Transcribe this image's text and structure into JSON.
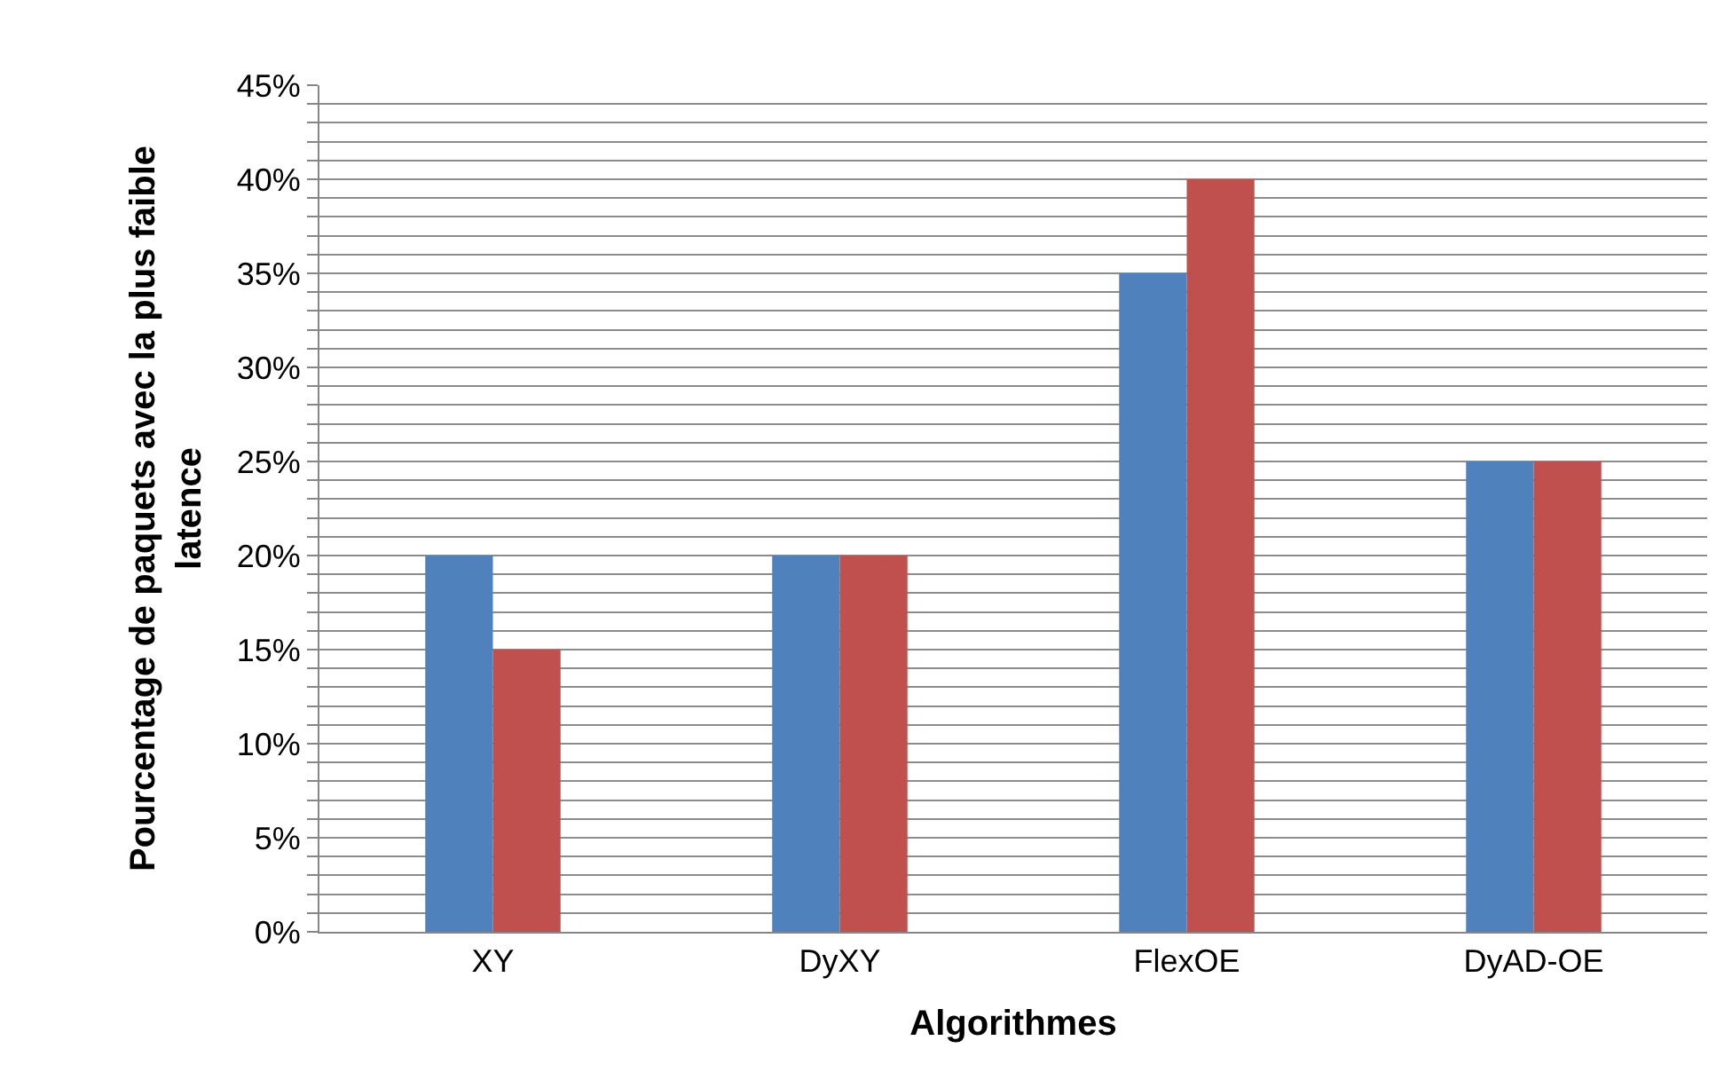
{
  "chart_data": {
    "type": "bar",
    "xlabel": "Algorithmes",
    "ylabel": "Pourcentage de paquets avec la plus faible latence",
    "categories": [
      "XY",
      "DyXY",
      "FlexOE",
      "DyAD-OE"
    ],
    "series": [
      {
        "color": "#4f81bd",
        "values": [
          20,
          20,
          35,
          25
        ]
      },
      {
        "color": "#c0504d",
        "values": [
          15,
          20,
          40,
          25
        ]
      }
    ],
    "ylim": [
      0,
      45
    ],
    "yticks": [
      {
        "value": 0,
        "label": "0%"
      },
      {
        "value": 1,
        "label": null
      },
      {
        "value": 2,
        "label": null
      },
      {
        "value": 3,
        "label": null
      },
      {
        "value": 4,
        "label": null
      },
      {
        "value": 5,
        "label": "5%"
      },
      {
        "value": 6,
        "label": null
      },
      {
        "value": 7,
        "label": null
      },
      {
        "value": 8,
        "label": null
      },
      {
        "value": 9,
        "label": null
      },
      {
        "value": 10,
        "label": "10%"
      },
      {
        "value": 11,
        "label": null
      },
      {
        "value": 12,
        "label": null
      },
      {
        "value": 13,
        "label": null
      },
      {
        "value": 14,
        "label": null
      },
      {
        "value": 15,
        "label": "15%"
      },
      {
        "value": 16,
        "label": null
      },
      {
        "value": 17,
        "label": null
      },
      {
        "value": 18,
        "label": null
      },
      {
        "value": 19,
        "label": null
      },
      {
        "value": 20,
        "label": "20%"
      },
      {
        "value": 21,
        "label": null
      },
      {
        "value": 22,
        "label": null
      },
      {
        "value": 23,
        "label": null
      },
      {
        "value": 24,
        "label": null
      },
      {
        "value": 25,
        "label": "25%"
      },
      {
        "value": 26,
        "label": null
      },
      {
        "value": 27,
        "label": null
      },
      {
        "value": 28,
        "label": null
      },
      {
        "value": 29,
        "label": null
      },
      {
        "value": 30,
        "label": "30%"
      },
      {
        "value": 31,
        "label": null
      },
      {
        "value": 32,
        "label": null
      },
      {
        "value": 33,
        "label": null
      },
      {
        "value": 34,
        "label": null
      },
      {
        "value": 35,
        "label": "35%"
      },
      {
        "value": 36,
        "label": null
      },
      {
        "value": 37,
        "label": null
      },
      {
        "value": 38,
        "label": null
      },
      {
        "value": 39,
        "label": null
      },
      {
        "value": 40,
        "label": "40%"
      },
      {
        "value": 41,
        "label": null
      },
      {
        "value": 42,
        "label": null
      },
      {
        "value": 43,
        "label": null
      },
      {
        "value": 44,
        "label": null
      },
      {
        "value": 45,
        "label": "45%"
      }
    ],
    "grid": true
  }
}
